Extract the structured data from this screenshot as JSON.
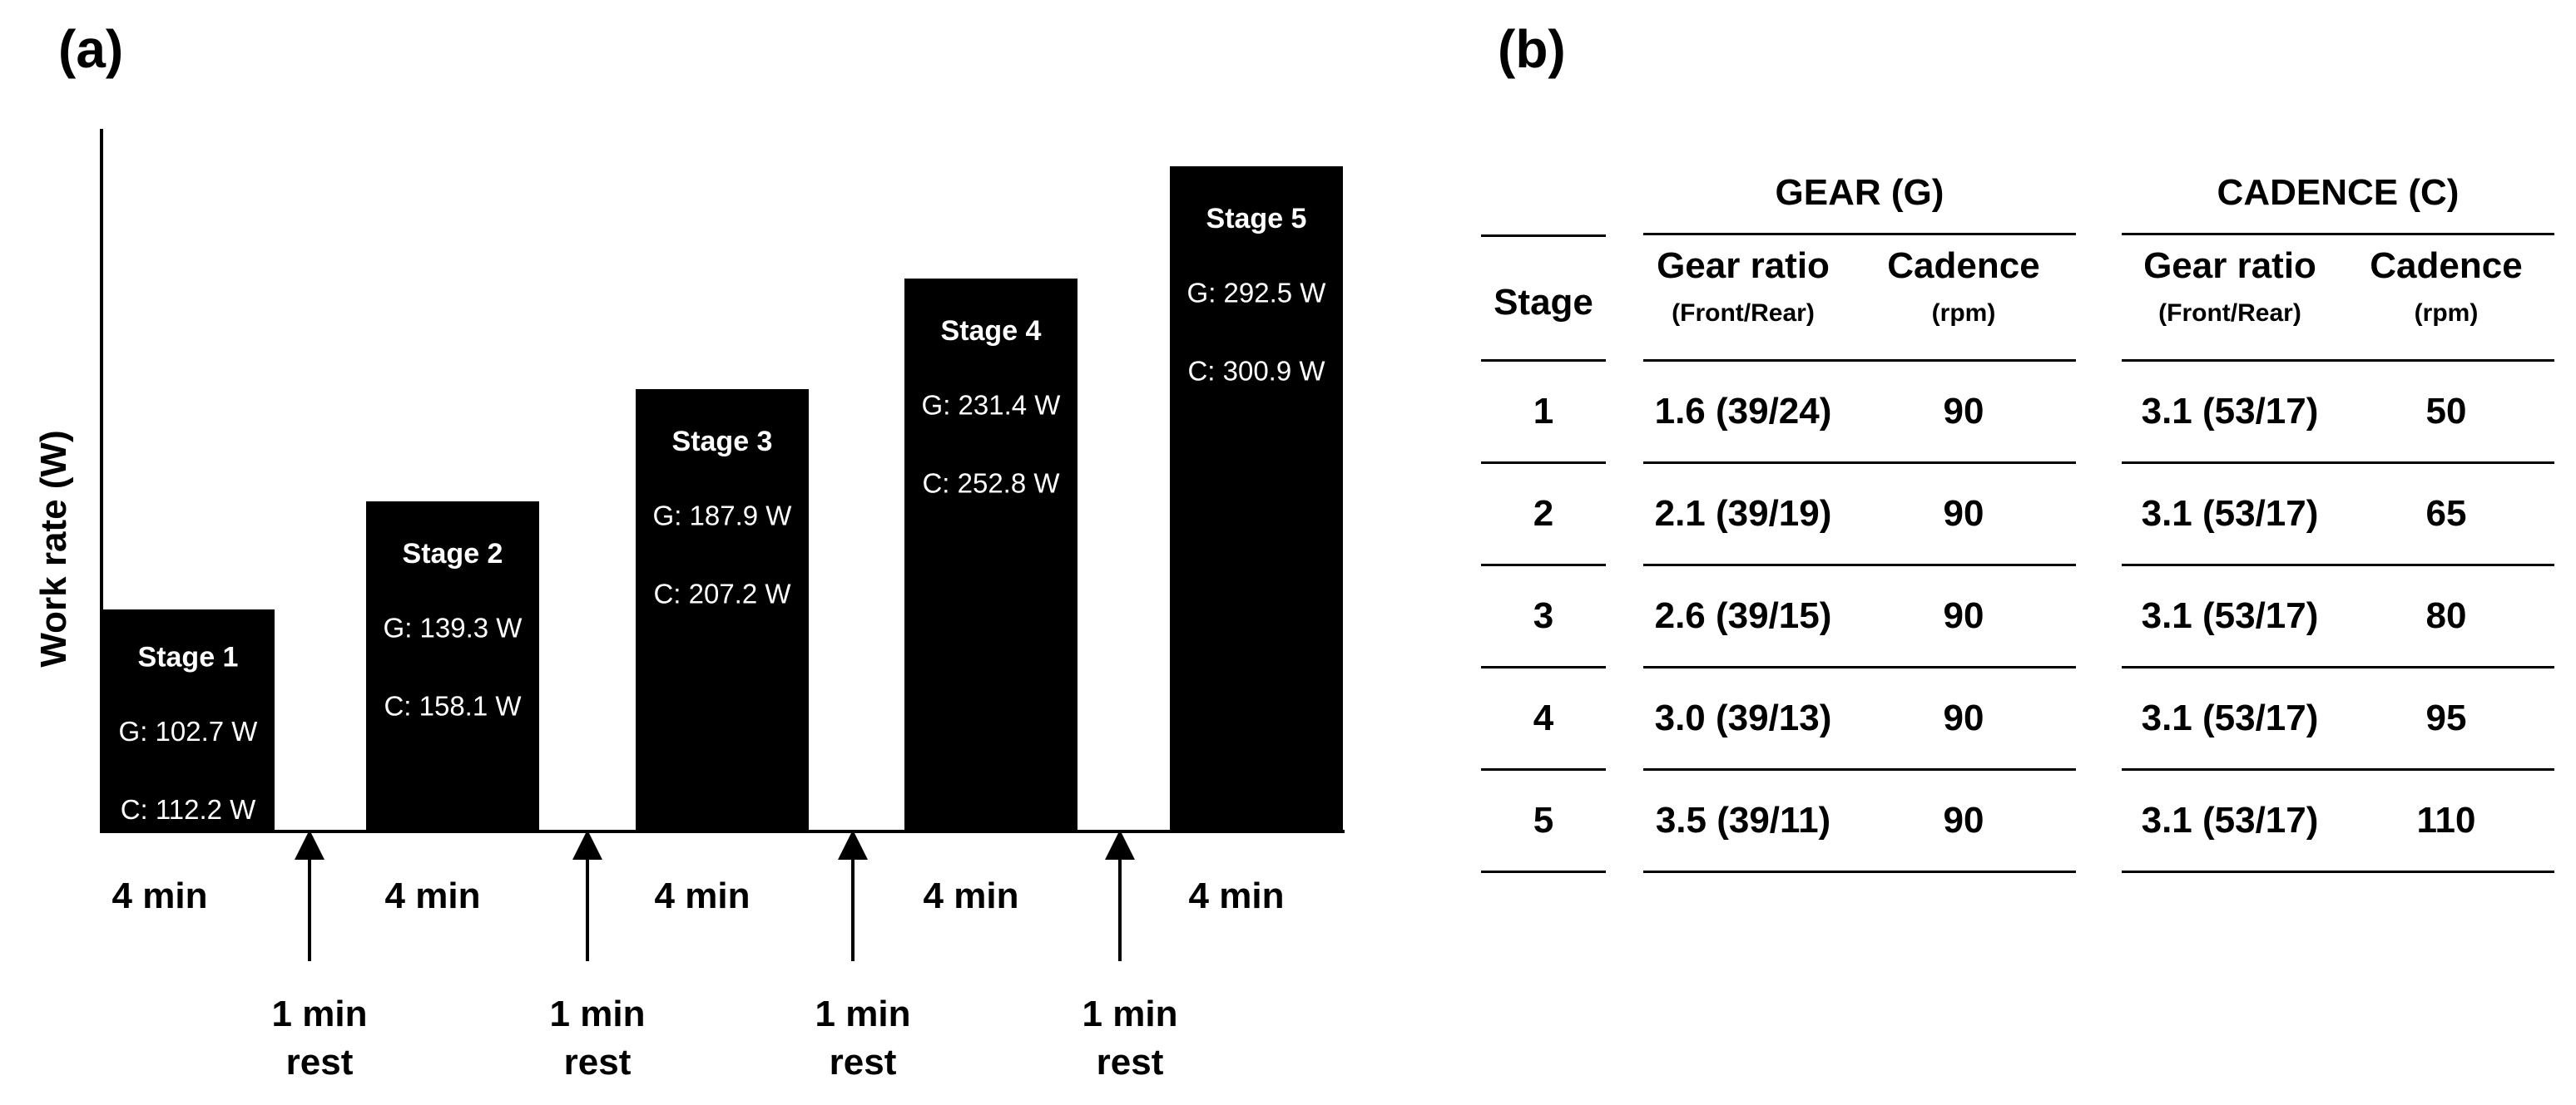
{
  "panel_a": {
    "label": "(a)",
    "y_axis_label": "Work rate (W)",
    "stages": [
      {
        "name": "Stage 1",
        "gear": "G: 102.7 W",
        "cadence": "C: 112.2 W",
        "duration": "4 min",
        "level": 1
      },
      {
        "name": "Stage 2",
        "gear": "G: 139.3 W",
        "cadence": "C: 158.1 W",
        "duration": "4 min",
        "level": 2
      },
      {
        "name": "Stage 3",
        "gear": "G: 187.9 W",
        "cadence": "C: 207.2 W",
        "duration": "4 min",
        "level": 3
      },
      {
        "name": "Stage 4",
        "gear": "G: 231.4 W",
        "cadence": "C: 252.8 W",
        "duration": "4 min",
        "level": 4
      },
      {
        "name": "Stage 5",
        "gear": "G: 292.5 W",
        "cadence": "C: 300.9 W",
        "duration": "4 min",
        "level": 5
      }
    ],
    "rest": {
      "line1": "1 min",
      "line2": "rest"
    }
  },
  "panel_b": {
    "label": "(b)",
    "stage_header": "Stage",
    "groups": [
      {
        "title": "GEAR (G)",
        "col1": "Gear ratio",
        "col1_sub": "(Front/Rear)",
        "col2": "Cadence",
        "col2_sub": "(rpm)"
      },
      {
        "title": "CADENCE (C)",
        "col1": "Gear ratio",
        "col1_sub": "(Front/Rear)",
        "col2": "Cadence",
        "col2_sub": "(rpm)"
      }
    ],
    "rows": [
      {
        "stage": "1",
        "g_ratio": "1.6 (39/24)",
        "g_cad": "90",
        "c_ratio": "3.1 (53/17)",
        "c_cad": "50"
      },
      {
        "stage": "2",
        "g_ratio": "2.1 (39/19)",
        "g_cad": "90",
        "c_ratio": "3.1 (53/17)",
        "c_cad": "65"
      },
      {
        "stage": "3",
        "g_ratio": "2.6 (39/15)",
        "g_cad": "90",
        "c_ratio": "3.1 (53/17)",
        "c_cad": "80"
      },
      {
        "stage": "4",
        "g_ratio": "3.0 (39/13)",
        "g_cad": "90",
        "c_ratio": "3.1 (53/17)",
        "c_cad": "95"
      },
      {
        "stage": "5",
        "g_ratio": "3.5 (39/11)",
        "g_cad": "90",
        "c_ratio": "3.1 (53/17)",
        "c_cad": "110"
      }
    ]
  }
}
